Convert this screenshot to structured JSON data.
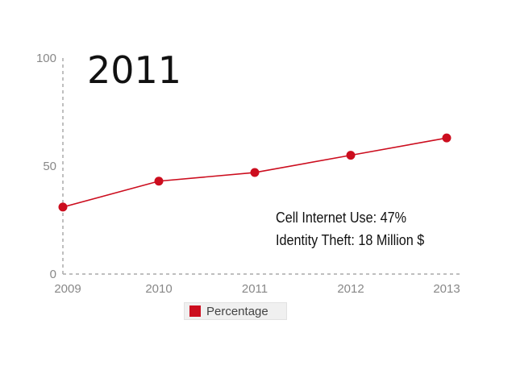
{
  "chart_data": {
    "type": "line",
    "title": "",
    "xlabel": "",
    "ylabel": "",
    "x": [
      "2009",
      "2010",
      "2011",
      "2012",
      "2013"
    ],
    "series": [
      {
        "name": "Percentage",
        "values": [
          31,
          43,
          47,
          55,
          63
        ],
        "color": "#cc0d1e"
      }
    ],
    "ylim": [
      0,
      100
    ],
    "yticks": [
      "0",
      "50",
      "100"
    ],
    "grid": false,
    "legend": "bottom",
    "annotations": {
      "year": "2011",
      "lines": [
        "Cell Internet Use: 47%",
        "Identity Theft: 18 Million $"
      ]
    }
  }
}
